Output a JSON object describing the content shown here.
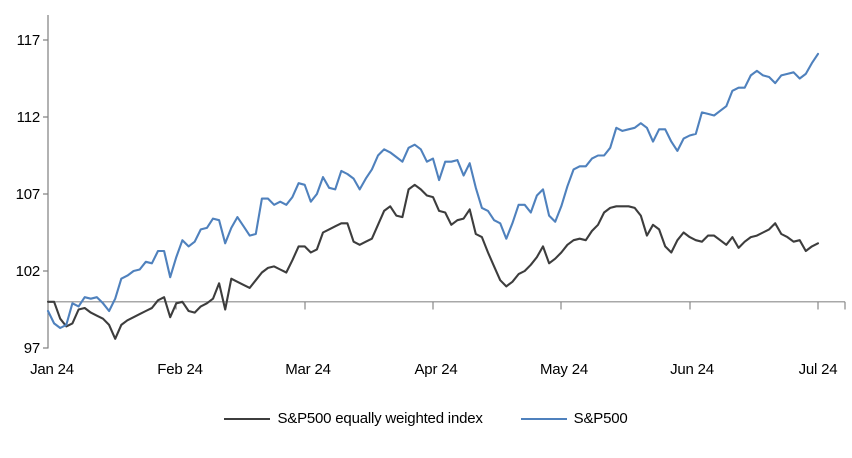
{
  "chart_data": {
    "type": "line",
    "title": "",
    "x_axis": {
      "tick_labels": [
        "Jan 24",
        "Feb 24",
        "Mar 24",
        "Apr 24",
        "May 24",
        "Jun 24",
        "Jul 24"
      ]
    },
    "y_axis": {
      "tick_labels": [
        "117",
        "112",
        "107",
        "102",
        "97"
      ],
      "tick_values": [
        117,
        112,
        107,
        102,
        97
      ],
      "range": [
        97,
        118.6
      ]
    },
    "baseline_value": 100,
    "grid": "off",
    "legend_position": "bottom",
    "colors": {
      "equal_weight_line": "#3d3d3d",
      "sp500_line": "#4f81bd",
      "axis": "#7f7f7f",
      "baseline": "#8c8c8c"
    },
    "series": [
      {
        "name": "S&P500 equally weighted index",
        "color": "#3d3d3d",
        "values": [
          100.0,
          100.0,
          98.9,
          98.4,
          98.6,
          99.5,
          99.6,
          99.3,
          99.1,
          98.9,
          98.5,
          97.6,
          98.5,
          98.8,
          99.0,
          99.2,
          99.4,
          99.6,
          100.1,
          100.3,
          99.0,
          99.9,
          100.0,
          99.4,
          99.3,
          99.7,
          99.9,
          100.2,
          101.2,
          99.5,
          101.5,
          101.3,
          101.1,
          100.9,
          101.4,
          101.9,
          102.2,
          102.3,
          102.1,
          101.9,
          102.7,
          103.6,
          103.6,
          103.2,
          103.4,
          104.5,
          104.7,
          104.9,
          105.1,
          105.1,
          103.9,
          103.7,
          103.9,
          104.1,
          105.0,
          105.9,
          106.2,
          105.6,
          105.5,
          107.3,
          107.6,
          107.3,
          106.9,
          106.8,
          105.9,
          105.8,
          105.0,
          105.3,
          105.4,
          106.0,
          104.4,
          104.2,
          103.2,
          102.3,
          101.4,
          101.0,
          101.3,
          101.8,
          102.0,
          102.4,
          102.9,
          103.6,
          102.5,
          102.8,
          103.2,
          103.7,
          104.0,
          104.1,
          104.0,
          104.6,
          105.0,
          105.8,
          106.1,
          106.2,
          106.2,
          106.2,
          106.1,
          105.6,
          104.3,
          105.0,
          104.7,
          103.6,
          103.2,
          104.0,
          104.5,
          104.2,
          104.0,
          103.9,
          104.3,
          104.3,
          104.0,
          103.7,
          104.2,
          103.5,
          103.9,
          104.2,
          104.3,
          104.5,
          104.7,
          105.1,
          104.4,
          104.2,
          103.9,
          104.0,
          103.3,
          103.6,
          103.8
        ]
      },
      {
        "name": "S&P500",
        "color": "#4f81bd",
        "values": [
          99.4,
          98.6,
          98.3,
          98.5,
          99.9,
          99.7,
          100.3,
          100.2,
          100.3,
          99.9,
          99.4,
          100.2,
          101.5,
          101.7,
          102.0,
          102.1,
          102.6,
          102.5,
          103.3,
          103.3,
          101.6,
          102.9,
          104.0,
          103.6,
          103.9,
          104.7,
          104.8,
          105.4,
          105.3,
          103.8,
          104.8,
          105.5,
          104.9,
          104.3,
          104.4,
          106.7,
          106.7,
          106.3,
          106.5,
          106.3,
          106.8,
          107.7,
          107.6,
          106.5,
          107.0,
          108.1,
          107.4,
          107.3,
          108.5,
          108.3,
          108.0,
          107.3,
          108.0,
          108.6,
          109.5,
          109.9,
          109.7,
          109.4,
          109.1,
          110.0,
          110.2,
          109.9,
          109.1,
          109.3,
          107.9,
          109.1,
          109.1,
          109.2,
          108.2,
          109.0,
          107.4,
          106.1,
          105.9,
          105.3,
          105.1,
          104.1,
          105.1,
          106.3,
          106.3,
          105.8,
          106.9,
          107.3,
          105.6,
          105.2,
          106.2,
          107.5,
          108.6,
          108.8,
          108.8,
          109.3,
          109.5,
          109.5,
          110.0,
          111.3,
          111.1,
          111.2,
          111.3,
          111.6,
          111.3,
          110.4,
          111.2,
          111.2,
          110.4,
          109.8,
          110.6,
          110.8,
          110.9,
          112.3,
          112.2,
          112.1,
          112.4,
          112.7,
          113.7,
          113.9,
          113.9,
          114.7,
          115.0,
          114.7,
          114.6,
          114.2,
          114.7,
          114.8,
          114.9,
          114.5,
          114.8,
          115.5,
          116.1
        ]
      }
    ]
  }
}
